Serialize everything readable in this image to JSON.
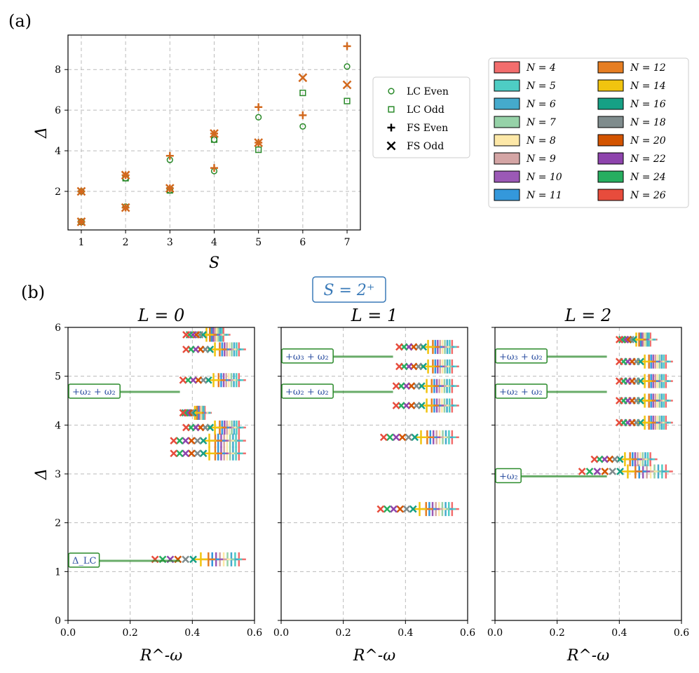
{
  "panel_labels": [
    "(a)",
    "(b)"
  ],
  "colors": {
    "lc": "#2a8a2a",
    "fs": "#d2691e",
    "N": {
      "4": "#f26d6d",
      "5": "#4ecdc4",
      "6": "#45aacc",
      "7": "#96d2a8",
      "8": "#fde8a8",
      "9": "#d4a5a5",
      "10": "#9b59b6",
      "11": "#3498db",
      "12": "#e67e22",
      "14": "#f1c40f",
      "16": "#16a085",
      "18": "#7f8c8d",
      "20": "#d35400",
      "22": "#8e44ad",
      "24": "#27ae60",
      "26": "#e74c3c"
    }
  },
  "legend_markers": {
    "items": [
      {
        "label": "LC Even",
        "marker": "circle",
        "color": "#2a8a2a"
      },
      {
        "label": "LC Odd",
        "marker": "square",
        "color": "#2a8a2a"
      },
      {
        "label": "FS Even",
        "marker": "plus",
        "color": "#000000"
      },
      {
        "label": "FS Odd",
        "marker": "x",
        "color": "#000000"
      }
    ]
  },
  "legend_N": {
    "items": [
      {
        "label": "N = 4",
        "color": "#f26d6d"
      },
      {
        "label": "N = 5",
        "color": "#4ecdc4"
      },
      {
        "label": "N = 6",
        "color": "#45aacc"
      },
      {
        "label": "N = 7",
        "color": "#96d2a8"
      },
      {
        "label": "N = 8",
        "color": "#fde8a8"
      },
      {
        "label": "N = 9",
        "color": "#d4a5a5"
      },
      {
        "label": "N = 10",
        "color": "#9b59b6"
      },
      {
        "label": "N = 11",
        "color": "#3498db"
      },
      {
        "label": "N = 12",
        "color": "#e67e22"
      },
      {
        "label": "N = 14",
        "color": "#f1c40f"
      },
      {
        "label": "N = 16",
        "color": "#16a085"
      },
      {
        "label": "N = 18",
        "color": "#7f8c8d"
      },
      {
        "label": "N = 20",
        "color": "#d35400"
      },
      {
        "label": "N = 22",
        "color": "#8e44ad"
      },
      {
        "label": "N = 24",
        "color": "#27ae60"
      },
      {
        "label": "N = 26",
        "color": "#e74c3c"
      }
    ]
  },
  "sector_label": "S = 2⁺",
  "chart_data": [
    {
      "type": "scatter",
      "xlabel": "S",
      "ylabel": "Δ",
      "xlim": [
        0.7,
        7.3
      ],
      "ylim": [
        0.1,
        9.7
      ],
      "xticks": [
        1,
        2,
        3,
        4,
        5,
        6,
        7
      ],
      "yticks": [
        2,
        4,
        6,
        8
      ],
      "grid": true,
      "series": [
        {
          "name": "LC Even",
          "x": [
            1,
            1,
            2,
            2,
            3,
            3,
            4,
            4,
            5,
            6,
            7
          ],
          "y": [
            2.0,
            0.5,
            2.65,
            1.25,
            3.55,
            2.05,
            3.0,
            4.55,
            5.65,
            5.2,
            8.15
          ]
        },
        {
          "name": "LC Odd",
          "x": [
            1,
            2,
            3,
            4,
            5,
            6,
            7
          ],
          "y": [
            0.5,
            2.65,
            2.05,
            4.55,
            4.05,
            6.85,
            6.45
          ]
        },
        {
          "name": "FS Even",
          "x": [
            1,
            1,
            2,
            2,
            3,
            3,
            4,
            4,
            5,
            5,
            6,
            7
          ],
          "y": [
            2.0,
            0.5,
            2.8,
            1.2,
            3.75,
            2.15,
            3.15,
            4.85,
            6.15,
            4.4,
            5.75,
            9.15
          ]
        },
        {
          "name": "FS Odd",
          "x": [
            1,
            1,
            2,
            2,
            3,
            4,
            5,
            6,
            7
          ],
          "y": [
            2.0,
            0.5,
            2.8,
            1.2,
            2.15,
            4.85,
            4.4,
            7.6,
            7.25
          ]
        }
      ]
    },
    {
      "type": "scatter",
      "title": "L = 0",
      "xlabel": "R^-ω",
      "ylabel": "Δ",
      "xlim": [
        0,
        0.6
      ],
      "ylim": [
        0,
        6
      ],
      "xticks": [
        0.0,
        0.2,
        0.4,
        0.6
      ],
      "xticklabels": [
        "0.0",
        "0.2",
        "0.4",
        "0.6"
      ],
      "yticks": [
        0,
        1,
        2,
        3,
        4,
        5,
        6
      ],
      "grid": true,
      "reference_lines": [
        {
          "label": "Δ_LC",
          "y": 1.22
        },
        {
          "label": "+ω₂ + ω₂",
          "y": 4.68
        }
      ],
      "levels": [
        {
          "y": 1.25,
          "x_min": 0.28,
          "x_max": 0.55
        },
        {
          "y": 3.42,
          "x_min": 0.34,
          "x_max": 0.55
        },
        {
          "y": 3.68,
          "x_min": 0.34,
          "x_max": 0.55
        },
        {
          "y": 3.95,
          "x_min": 0.38,
          "x_max": 0.55
        },
        {
          "y": 4.25,
          "x_min": 0.37,
          "x_max": 0.44
        },
        {
          "y": 4.92,
          "x_min": 0.37,
          "x_max": 0.55
        },
        {
          "y": 5.55,
          "x_min": 0.38,
          "x_max": 0.55
        },
        {
          "y": 5.85,
          "x_min": 0.38,
          "x_max": 0.5
        }
      ]
    },
    {
      "type": "scatter",
      "title": "L = 1",
      "xlabel": "R^-ω",
      "xlim": [
        0,
        0.6
      ],
      "ylim": [
        0,
        6
      ],
      "xticks": [
        0.0,
        0.2,
        0.4,
        0.6
      ],
      "xticklabels": [
        "0.0",
        "0.2",
        "0.4",
        "0.6"
      ],
      "grid": true,
      "reference_lines": [
        {
          "label": "+ω₂ + ω₂",
          "y": 4.68
        },
        {
          "label": "+ω₃ + ω₂",
          "y": 5.4
        }
      ],
      "levels": [
        {
          "y": 2.28,
          "x_min": 0.32,
          "x_max": 0.55
        },
        {
          "y": 3.75,
          "x_min": 0.33,
          "x_max": 0.55
        },
        {
          "y": 4.4,
          "x_min": 0.37,
          "x_max": 0.55
        },
        {
          "y": 4.8,
          "x_min": 0.37,
          "x_max": 0.55
        },
        {
          "y": 5.2,
          "x_min": 0.38,
          "x_max": 0.55
        },
        {
          "y": 5.6,
          "x_min": 0.38,
          "x_max": 0.55
        }
      ]
    },
    {
      "type": "scatter",
      "title": "L = 2",
      "xlabel": "R^-ω",
      "xlim": [
        0,
        0.6
      ],
      "ylim": [
        0,
        6
      ],
      "xticks": [
        0.0,
        0.2,
        0.4,
        0.6
      ],
      "xticklabels": [
        "0.0",
        "0.2",
        "0.4",
        "0.6"
      ],
      "grid": true,
      "reference_lines": [
        {
          "label": "+ω₂",
          "y": 2.95
        },
        {
          "label": "+ω₂ + ω₂",
          "y": 4.68
        },
        {
          "label": "+ω₃ + ω₂",
          "y": 5.4
        }
      ],
      "levels": [
        {
          "y": 3.05,
          "x_min": 0.28,
          "x_max": 0.55
        },
        {
          "y": 3.3,
          "x_min": 0.32,
          "x_max": 0.5
        },
        {
          "y": 4.05,
          "x_min": 0.4,
          "x_max": 0.55
        },
        {
          "y": 4.5,
          "x_min": 0.4,
          "x_max": 0.55
        },
        {
          "y": 4.9,
          "x_min": 0.4,
          "x_max": 0.55
        },
        {
          "y": 5.3,
          "x_min": 0.4,
          "x_max": 0.55
        },
        {
          "y": 5.75,
          "x_min": 0.4,
          "x_max": 0.5
        }
      ]
    }
  ]
}
